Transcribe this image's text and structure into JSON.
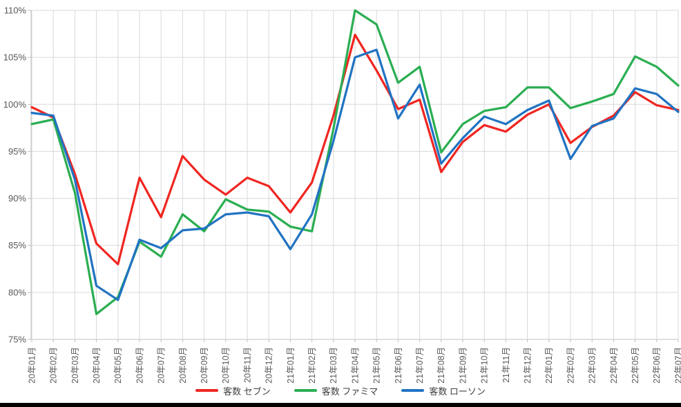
{
  "chart_data": {
    "type": "line",
    "title": "",
    "categories": [
      "20年01月",
      "20年02月",
      "20年03月",
      "20年04月",
      "20年05月",
      "20年06月",
      "20年07月",
      "20年08月",
      "20年09月",
      "20年10月",
      "20年11月",
      "20年12月",
      "21年01月",
      "21年02月",
      "21年03月",
      "21年04月",
      "21年05月",
      "21年06月",
      "21年07月",
      "21年08月",
      "21年09月",
      "21年10月",
      "21年11月",
      "21年12月",
      "22年01月",
      "22年02月",
      "22年03月",
      "22年04月",
      "22年05月",
      "22年06月",
      "22年07月"
    ],
    "series": [
      {
        "name": "客数 セブン",
        "color": "#f02621",
        "values": [
          99.7,
          98.6,
          92.6,
          85.2,
          83.0,
          92.2,
          88.0,
          94.5,
          92.0,
          90.4,
          92.2,
          91.3,
          88.5,
          91.7,
          98.8,
          107.4,
          103.6,
          99.5,
          100.5,
          92.8,
          96.0,
          97.8,
          97.1,
          98.9,
          100.0,
          95.9,
          97.6,
          98.8,
          101.3,
          99.9,
          99.4
        ]
      },
      {
        "name": "客数 ファミマ",
        "color": "#2bae52",
        "values": [
          97.9,
          98.4,
          90.6,
          77.7,
          79.5,
          85.4,
          83.8,
          88.3,
          86.5,
          89.9,
          88.8,
          88.6,
          87.0,
          86.5,
          97.4,
          110.0,
          108.5,
          102.3,
          104.0,
          94.9,
          97.9,
          99.3,
          99.7,
          101.8,
          101.8,
          99.6,
          100.3,
          101.1,
          105.1,
          104.0,
          102.0
        ]
      },
      {
        "name": "客数 ローソン",
        "color": "#2173c2",
        "values": [
          99.1,
          98.8,
          92.0,
          80.7,
          79.2,
          85.6,
          84.7,
          86.6,
          86.8,
          88.3,
          88.5,
          88.1,
          84.6,
          88.3,
          96.1,
          105.0,
          105.8,
          98.5,
          102.1,
          93.7,
          96.4,
          98.7,
          97.9,
          99.4,
          100.4,
          94.2,
          97.7,
          98.5,
          101.7,
          101.1,
          99.2
        ]
      }
    ],
    "y_axis": {
      "tick_labels": [
        "110%",
        "105%",
        "100%",
        "95%",
        "90%",
        "85%",
        "80%",
        "75%"
      ],
      "min": 75,
      "max": 110,
      "step": 5,
      "format": "percent"
    },
    "x_axis": {
      "label_rotation_deg": 90
    },
    "legend_position": "bottom",
    "grid": true
  },
  "colors": {
    "background": "#ffffff",
    "gridline": "#d9d9d9",
    "axis_line": "#bfbfbf",
    "axis_text": "#595959",
    "legend_text": "#404040",
    "bottom_bar": "#000000"
  }
}
